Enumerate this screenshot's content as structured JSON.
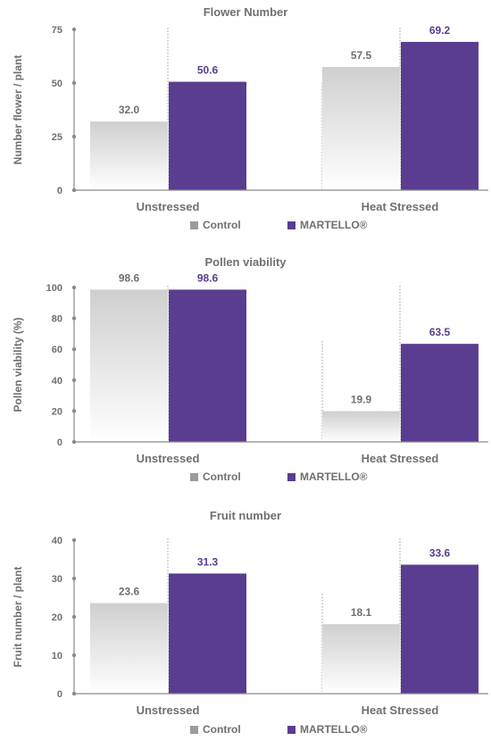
{
  "colors": {
    "control": "#9b9b9b",
    "control_top": "#d2d2d2",
    "treatment": "#5a3d91",
    "axis": "#8a8a8a",
    "text": "#6f6f6f",
    "grid": "#999999"
  },
  "chart_data": [
    {
      "type": "bar",
      "title": "Flower Number",
      "ylabel": "Number flower / plant",
      "xlabel": "",
      "categories": [
        "Unstressed",
        "Heat Stressed"
      ],
      "yticks": [
        0,
        25,
        50,
        75
      ],
      "ylim": [
        0,
        75
      ],
      "grid": false,
      "legend_position": "bottom",
      "series": [
        {
          "name": "Control",
          "values": [
            32.0,
            57.5
          ],
          "labels": [
            "32.0",
            "57.5"
          ]
        },
        {
          "name": "MARTELLO®",
          "values": [
            50.6,
            69.2
          ],
          "labels": [
            "50.6",
            "69.2"
          ]
        }
      ]
    },
    {
      "type": "bar",
      "title": "Pollen viability",
      "ylabel": "Pollen viability (%)",
      "xlabel": "",
      "categories": [
        "Unstressed",
        "Heat Stressed"
      ],
      "yticks": [
        0,
        20,
        40,
        60,
        80,
        100
      ],
      "ylim": [
        0,
        100
      ],
      "grid": false,
      "legend_position": "bottom",
      "series": [
        {
          "name": "Control",
          "values": [
            98.6,
            19.9
          ],
          "labels": [
            "98.6",
            "19.9"
          ]
        },
        {
          "name": "MARTELLO®",
          "values": [
            98.6,
            63.5
          ],
          "labels": [
            "98.6",
            "63.5"
          ]
        }
      ]
    },
    {
      "type": "bar",
      "title": "Fruit number",
      "ylabel": "Fruit number / plant",
      "xlabel": "",
      "categories": [
        "Unstressed",
        "Heat Stressed"
      ],
      "yticks": [
        0,
        10,
        20,
        30,
        40
      ],
      "ylim": [
        0,
        40
      ],
      "grid": false,
      "legend_position": "bottom",
      "series": [
        {
          "name": "Control",
          "values": [
            23.6,
            18.1
          ],
          "labels": [
            "23.6",
            "18.1"
          ]
        },
        {
          "name": "MARTELLO®",
          "values": [
            31.3,
            33.6
          ],
          "labels": [
            "31.3",
            "33.6"
          ]
        }
      ]
    }
  ]
}
